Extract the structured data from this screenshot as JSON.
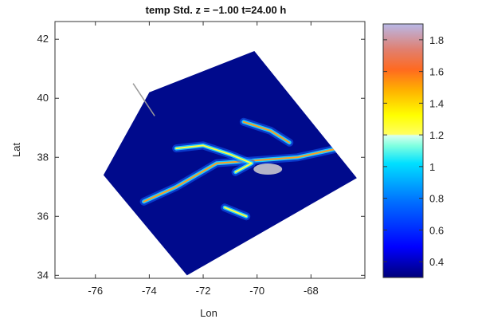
{
  "figure": {
    "title": "temp Std. z = −1.00 t=24.00 h",
    "xlabel": "Lon",
    "ylabel": "Lat"
  },
  "map_data": {
    "type": "heatmap",
    "xlim": [
      -77.5,
      -66
    ],
    "ylim": [
      33.9,
      42.6
    ],
    "xticks": [
      "-76",
      "-74",
      "-72",
      "-70",
      "-68"
    ],
    "xtick_values": [
      -76,
      -74,
      -72,
      -70,
      -68
    ],
    "yticks": [
      "34",
      "36",
      "38",
      "40",
      "42"
    ],
    "ytick_values": [
      34,
      36,
      38,
      40,
      42
    ],
    "domain_corners_lonlat": [
      [
        -75.7,
        37.4
      ],
      [
        -74.0,
        40.2
      ],
      [
        -70.1,
        41.6
      ],
      [
        -66.3,
        37.3
      ],
      [
        -72.6,
        34.0
      ]
    ],
    "coastline_segment": [
      [
        -74.6,
        40.5
      ],
      [
        -73.8,
        39.4
      ]
    ],
    "color_missing": "#b4b4c8",
    "background_fill": "#000a8c",
    "eddy_field": [
      {
        "kind": "jet",
        "lon": [
          -74.2,
          -73.0,
          -71.5,
          -70.0,
          -68.5,
          -67.0
        ],
        "lat": [
          36.5,
          37.0,
          37.8,
          37.9,
          38.0,
          38.3
        ],
        "max": 1.6
      },
      {
        "kind": "loop",
        "lon": [
          -73.0,
          -72.0,
          -71.0,
          -70.2,
          -70.8
        ],
        "lat": [
          38.3,
          38.4,
          38.1,
          37.8,
          37.5
        ],
        "max": 1.4
      },
      {
        "kind": "arc",
        "lon": [
          -70.5,
          -69.5,
          -68.8
        ],
        "lat": [
          39.2,
          38.9,
          38.5
        ],
        "max": 1.7
      },
      {
        "kind": "ring",
        "lon": [
          -71.2,
          -70.4
        ],
        "lat": [
          36.3,
          36.0
        ],
        "max": 1.3
      }
    ]
  },
  "colorbar": {
    "min": 0.3,
    "max": 1.9,
    "ticks": [
      "0.4",
      "0.6",
      "0.8",
      "1",
      "1.2",
      "1.4",
      "1.6",
      "1.8"
    ],
    "tick_values": [
      0.4,
      0.6,
      0.8,
      1.0,
      1.2,
      1.4,
      1.6,
      1.8
    ],
    "colormap": "jet-like",
    "colors": [
      "#00008c",
      "#0000ff",
      "#0080ff",
      "#00ffff",
      "#ffffbe",
      "#ffff00",
      "#ff8000",
      "#ff0000",
      "#b4b4dc"
    ]
  }
}
